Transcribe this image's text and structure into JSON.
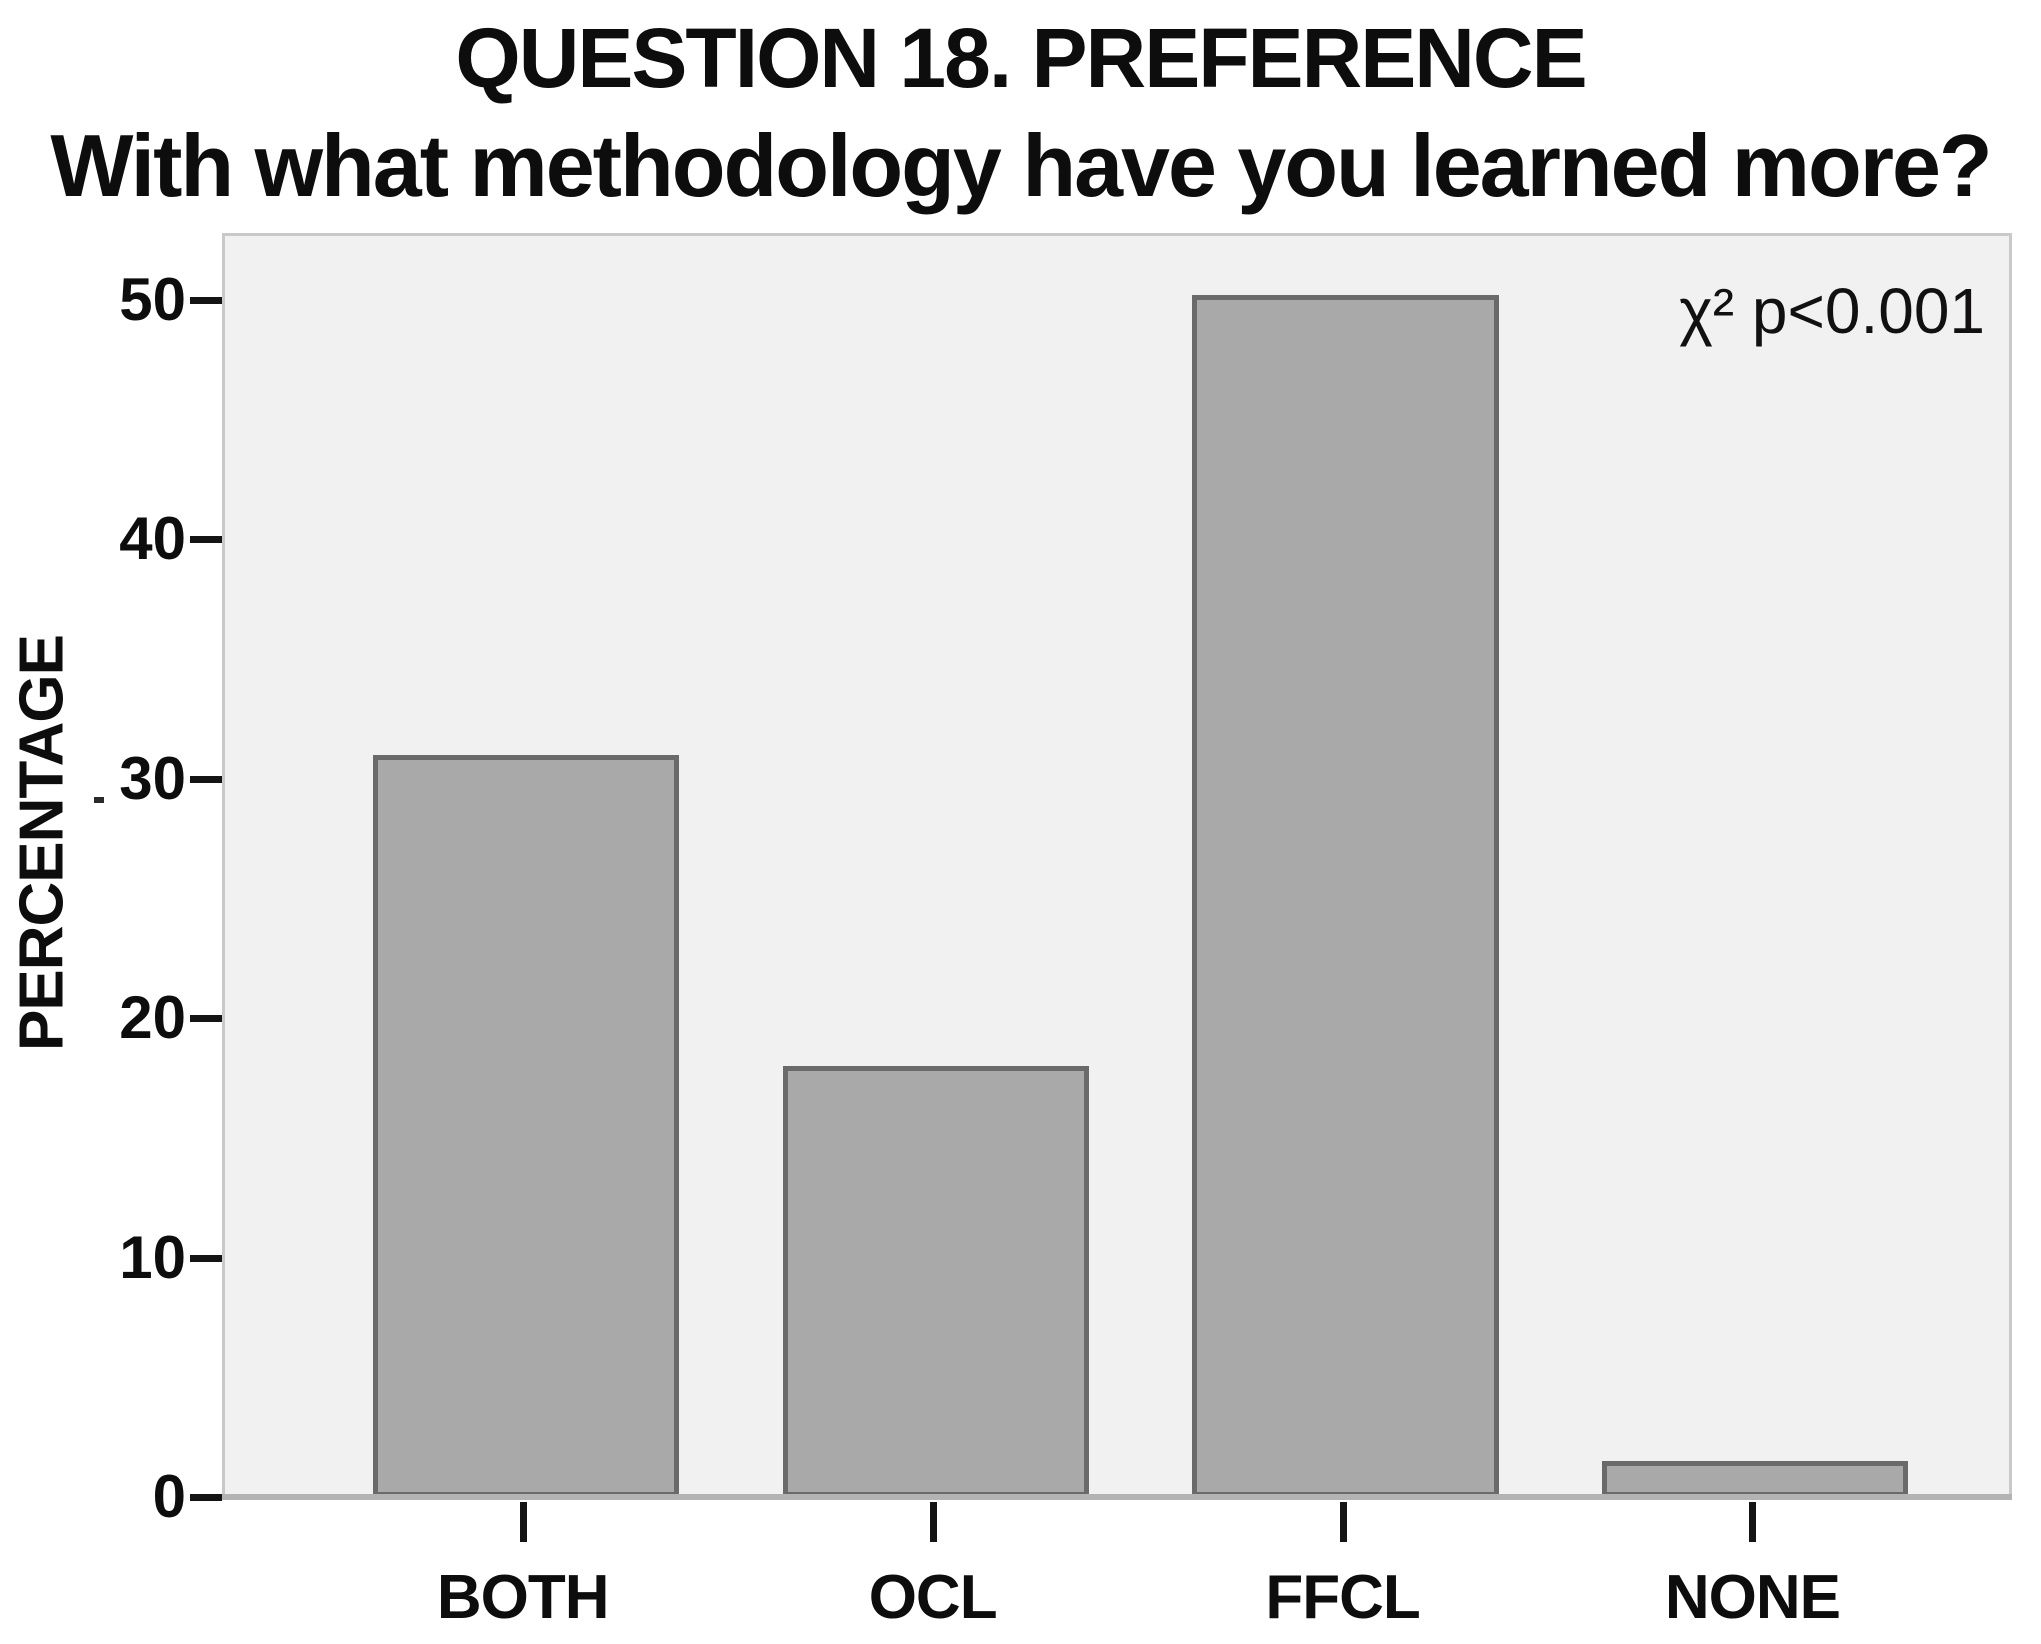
{
  "figure": {
    "title_line1": "QUESTION 18. PREFERENCE",
    "title_line2": "With what methodology have you learned more?",
    "annotation": "χ² p<0.001"
  },
  "chart_data": {
    "type": "bar",
    "title": "QUESTION 18. PREFERENCE",
    "subtitle": "With what methodology have you learned more?",
    "categories": [
      "BOTH",
      "OCL",
      "FFCL",
      "NONE"
    ],
    "values": [
      31,
      18,
      50.2,
      1.5
    ],
    "xlabel": "",
    "ylabel": "PERCENTAGE",
    "ylim": [
      0,
      52.8
    ],
    "yticks": [
      0,
      10,
      20,
      30,
      40,
      50
    ],
    "annotation": "χ² p<0.001",
    "grid": false,
    "legend": false,
    "colors": {
      "bar_fill": "#a9a9a9",
      "bar_border": "#6a6a6a",
      "plot_background": "#f2f1f1",
      "plot_border": "#c9c9c9",
      "baseline": "#b3b3b3",
      "text": "#0d0d0d"
    }
  }
}
